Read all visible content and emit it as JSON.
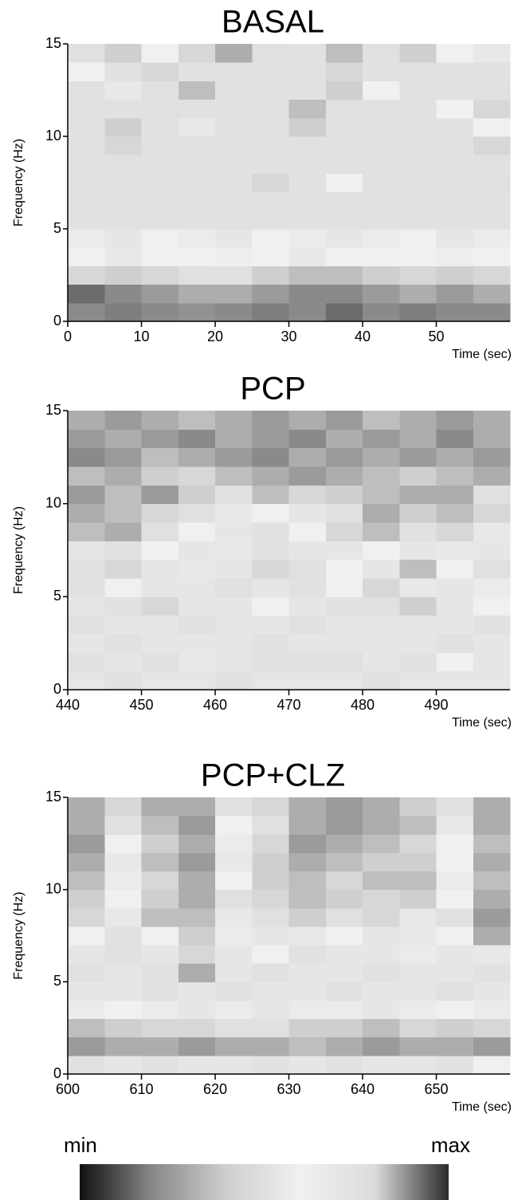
{
  "chart_data": [
    {
      "type": "heatmap",
      "title": "BASAL",
      "xlabel": "Time (sec)",
      "ylabel": "Frequency (Hz)",
      "xlim": [
        0,
        60
      ],
      "xticks": [
        0,
        10,
        20,
        30,
        40,
        50
      ],
      "ylim": [
        0,
        15
      ],
      "yticks": [
        0,
        5,
        10,
        15
      ],
      "x": [
        0,
        5,
        10,
        15,
        20,
        25,
        30,
        35,
        40,
        45,
        50,
        55
      ],
      "y": [
        0,
        1,
        2,
        3,
        4,
        5,
        6,
        7,
        8,
        9,
        10,
        11,
        12,
        13,
        14
      ],
      "z": [
        [
          0.2,
          0.18,
          0.2,
          0.22,
          0.2,
          0.18,
          0.2,
          0.15,
          0.2,
          0.18,
          0.2,
          0.2
        ],
        [
          0.15,
          0.2,
          0.25,
          0.3,
          0.3,
          0.25,
          0.2,
          0.2,
          0.25,
          0.3,
          0.25,
          0.3
        ],
        [
          0.45,
          0.4,
          0.45,
          0.5,
          0.5,
          0.4,
          0.35,
          0.35,
          0.4,
          0.45,
          0.4,
          0.45
        ],
        [
          0.6,
          0.55,
          0.6,
          0.6,
          0.62,
          0.6,
          0.55,
          0.6,
          0.6,
          0.6,
          0.62,
          0.6
        ],
        [
          0.65,
          0.7,
          0.6,
          0.65,
          0.7,
          0.6,
          0.65,
          0.7,
          0.65,
          0.6,
          0.7,
          0.65
        ],
        [
          0.75,
          0.75,
          0.75,
          0.75,
          0.5,
          0.75,
          0.75,
          0.75,
          0.75,
          0.75,
          0.75,
          0.75
        ],
        [
          0.75,
          0.75,
          0.75,
          0.75,
          0.75,
          0.75,
          0.75,
          0.75,
          0.75,
          0.75,
          0.5,
          0.75
        ],
        [
          0.75,
          0.75,
          0.75,
          0.5,
          0.75,
          0.45,
          0.75,
          0.6,
          0.75,
          0.75,
          0.75,
          0.5
        ],
        [
          0.75,
          0.75,
          0.75,
          0.75,
          0.75,
          0.75,
          0.75,
          0.75,
          0.75,
          0.75,
          0.75,
          0.75
        ],
        [
          0.75,
          0.45,
          0.75,
          0.75,
          0.75,
          0.75,
          0.75,
          0.75,
          0.75,
          0.5,
          0.75,
          0.45
        ],
        [
          0.75,
          0.4,
          0.75,
          0.55,
          0.75,
          0.75,
          0.4,
          0.75,
          0.75,
          0.75,
          0.75,
          0.6
        ],
        [
          0.75,
          0.75,
          0.5,
          0.75,
          0.75,
          0.75,
          0.35,
          0.5,
          0.75,
          0.75,
          0.6,
          0.45
        ],
        [
          0.75,
          0.55,
          0.75,
          0.35,
          0.75,
          0.75,
          0.75,
          0.4,
          0.6,
          0.5,
          0.75,
          0.5
        ],
        [
          0.6,
          0.75,
          0.45,
          0.75,
          0.5,
          0.75,
          0.75,
          0.45,
          0.75,
          0.5,
          0.75,
          0.75
        ],
        [
          0.5,
          0.4,
          0.6,
          0.45,
          0.3,
          0.5,
          0.75,
          0.35,
          0.5,
          0.4,
          0.6,
          0.55
        ]
      ]
    },
    {
      "type": "heatmap",
      "title": "PCP",
      "xlabel": "Time (sec)",
      "ylabel": "Frequency (Hz)",
      "xlim": [
        440,
        500
      ],
      "xticks": [
        440,
        450,
        460,
        470,
        480,
        490
      ],
      "ylim": [
        0,
        15
      ],
      "yticks": [
        0,
        5,
        10,
        15
      ],
      "x": [
        440,
        445,
        450,
        455,
        460,
        465,
        470,
        475,
        480,
        485,
        490,
        495
      ],
      "y": [
        0,
        1,
        2,
        3,
        4,
        5,
        6,
        7,
        8,
        9,
        10,
        11,
        12,
        13,
        14
      ],
      "z": [
        [
          0.7,
          0.75,
          0.7,
          0.7,
          0.75,
          0.7,
          0.7,
          0.7,
          0.75,
          0.7,
          0.7,
          0.7
        ],
        [
          0.75,
          0.7,
          0.75,
          0.55,
          0.7,
          0.75,
          0.5,
          0.5,
          0.7,
          0.75,
          0.6,
          0.7
        ],
        [
          0.7,
          0.75,
          0.7,
          0.7,
          0.7,
          0.75,
          0.7,
          0.7,
          0.7,
          0.7,
          0.75,
          0.7
        ],
        [
          0.75,
          0.7,
          0.7,
          0.75,
          0.7,
          0.7,
          0.75,
          0.7,
          0.7,
          0.7,
          0.7,
          0.75
        ],
        [
          0.7,
          0.75,
          0.45,
          0.7,
          0.7,
          0.6,
          0.7,
          0.75,
          0.5,
          0.4,
          0.7,
          0.6
        ],
        [
          0.75,
          0.6,
          0.7,
          0.7,
          0.5,
          0.7,
          0.75,
          0.6,
          0.45,
          0.55,
          0.7,
          0.65
        ],
        [
          0.5,
          0.45,
          0.7,
          0.55,
          0.7,
          0.45,
          0.5,
          0.6,
          0.7,
          0.35,
          0.6,
          0.5
        ],
        [
          0.7,
          0.75,
          0.6,
          0.7,
          0.55,
          0.75,
          0.7,
          0.7,
          0.6,
          0.7,
          0.55,
          0.7
        ],
        [
          0.35,
          0.3,
          0.5,
          0.6,
          0.7,
          0.75,
          0.6,
          0.45,
          0.35,
          0.5,
          0.45,
          0.55
        ],
        [
          0.3,
          0.35,
          0.45,
          0.5,
          0.55,
          0.6,
          0.7,
          0.5,
          0.3,
          0.4,
          0.35,
          0.45
        ],
        [
          0.25,
          0.35,
          0.25,
          0.4,
          0.5,
          0.35,
          0.45,
          0.4,
          0.35,
          0.3,
          0.3,
          0.5
        ],
        [
          0.35,
          0.3,
          0.4,
          0.45,
          0.35,
          0.3,
          0.25,
          0.3,
          0.35,
          0.4,
          0.35,
          0.3
        ],
        [
          0.2,
          0.25,
          0.35,
          0.3,
          0.25,
          0.2,
          0.3,
          0.25,
          0.3,
          0.25,
          0.3,
          0.25
        ],
        [
          0.25,
          0.3,
          0.25,
          0.2,
          0.3,
          0.25,
          0.2,
          0.3,
          0.25,
          0.3,
          0.2,
          0.3
        ],
        [
          0.3,
          0.25,
          0.3,
          0.35,
          0.3,
          0.25,
          0.3,
          0.25,
          0.35,
          0.3,
          0.25,
          0.3
        ]
      ]
    },
    {
      "type": "heatmap",
      "title": "PCP+CLZ",
      "xlabel": "Time (sec)",
      "ylabel": "Frequency (Hz)",
      "xlim": [
        600,
        660
      ],
      "xticks": [
        600,
        610,
        620,
        630,
        640,
        650
      ],
      "ylim": [
        0,
        15
      ],
      "yticks": [
        0,
        5,
        10,
        15
      ],
      "x": [
        600,
        605,
        610,
        615,
        620,
        625,
        630,
        635,
        640,
        645,
        650,
        655
      ],
      "y": [
        0,
        1,
        2,
        3,
        4,
        5,
        6,
        7,
        8,
        9,
        10,
        11,
        12,
        13,
        14
      ],
      "z": [
        [
          0.75,
          0.7,
          0.75,
          0.7,
          0.7,
          0.75,
          0.7,
          0.75,
          0.7,
          0.7,
          0.75,
          0.6
        ],
        [
          0.25,
          0.3,
          0.3,
          0.25,
          0.3,
          0.3,
          0.35,
          0.3,
          0.25,
          0.3,
          0.3,
          0.25
        ],
        [
          0.35,
          0.4,
          0.45,
          0.45,
          0.5,
          0.5,
          0.4,
          0.4,
          0.35,
          0.45,
          0.4,
          0.45
        ],
        [
          0.65,
          0.6,
          0.65,
          0.7,
          0.65,
          0.7,
          0.65,
          0.65,
          0.7,
          0.65,
          0.6,
          0.65
        ],
        [
          0.7,
          0.7,
          0.75,
          0.7,
          0.75,
          0.7,
          0.7,
          0.75,
          0.7,
          0.7,
          0.75,
          0.7
        ],
        [
          0.75,
          0.7,
          0.75,
          0.3,
          0.7,
          0.75,
          0.7,
          0.7,
          0.75,
          0.7,
          0.7,
          0.75
        ],
        [
          0.7,
          0.75,
          0.7,
          0.45,
          0.7,
          0.6,
          0.75,
          0.7,
          0.7,
          0.65,
          0.7,
          0.55
        ],
        [
          0.6,
          0.75,
          0.6,
          0.4,
          0.65,
          0.7,
          0.55,
          0.6,
          0.7,
          0.55,
          0.6,
          0.3
        ],
        [
          0.45,
          0.55,
          0.35,
          0.35,
          0.55,
          0.5,
          0.4,
          0.5,
          0.45,
          0.55,
          0.5,
          0.25
        ],
        [
          0.4,
          0.6,
          0.4,
          0.3,
          0.5,
          0.45,
          0.35,
          0.4,
          0.45,
          0.4,
          0.6,
          0.3
        ],
        [
          0.35,
          0.65,
          0.45,
          0.3,
          0.6,
          0.4,
          0.35,
          0.45,
          0.35,
          0.35,
          0.65,
          0.35
        ],
        [
          0.3,
          0.55,
          0.35,
          0.25,
          0.55,
          0.4,
          0.3,
          0.35,
          0.4,
          0.4,
          0.6,
          0.3
        ],
        [
          0.25,
          0.6,
          0.4,
          0.3,
          0.65,
          0.45,
          0.25,
          0.3,
          0.35,
          0.45,
          0.6,
          0.35
        ],
        [
          0.3,
          0.5,
          0.35,
          0.25,
          0.6,
          0.5,
          0.3,
          0.25,
          0.3,
          0.35,
          0.55,
          0.3
        ],
        [
          0.3,
          0.45,
          0.3,
          0.3,
          0.5,
          0.45,
          0.3,
          0.25,
          0.3,
          0.4,
          0.5,
          0.3
        ]
      ]
    }
  ],
  "colorbar": {
    "min_label": "min",
    "max_label": "max",
    "colors": [
      "#111111",
      "#8a8a8a",
      "#cfcfcf",
      "#f0f0f0",
      "#dcdcdc",
      "#2b2b2b"
    ]
  }
}
